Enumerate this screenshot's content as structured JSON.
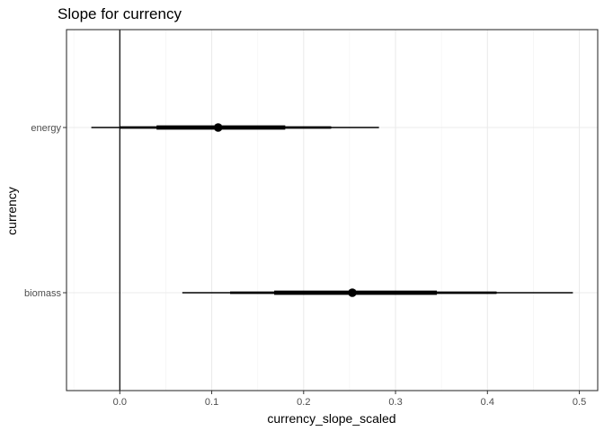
{
  "chart_data": {
    "type": "pointinterval",
    "title": "Slope for currency",
    "xlabel": "currency_slope_scaled",
    "ylabel": "currency",
    "xlim": [
      -0.058,
      0.52
    ],
    "x_ticks": [
      0.0,
      0.1,
      0.2,
      0.3,
      0.4,
      0.5
    ],
    "x_tick_labels": [
      "0.0",
      "0.1",
      "0.2",
      "0.3",
      "0.4",
      "0.5"
    ],
    "x_minor_ticks": [
      -0.05,
      0.05,
      0.15,
      0.25,
      0.35,
      0.45
    ],
    "categories": [
      "energy",
      "biomass"
    ],
    "reference_line_x": 0,
    "grid": true,
    "theme": "bw",
    "colors": {
      "grid_major": "#ebebeb",
      "grid_minor": "#f5f5f5",
      "panel_border": "#333333",
      "points": "#000000",
      "intervals": "#000000",
      "tick_labels": "#4d4d4d"
    },
    "series": [
      {
        "category": "energy",
        "point": 0.107,
        "intervals": [
          {
            "low": -0.031,
            "high": 0.282
          },
          {
            "low": 0.0,
            "high": 0.23
          },
          {
            "low": 0.04,
            "high": 0.18
          }
        ]
      },
      {
        "category": "biomass",
        "point": 0.253,
        "intervals": [
          {
            "low": 0.068,
            "high": 0.493
          },
          {
            "low": 0.12,
            "high": 0.41
          },
          {
            "low": 0.168,
            "high": 0.345
          }
        ]
      }
    ]
  }
}
